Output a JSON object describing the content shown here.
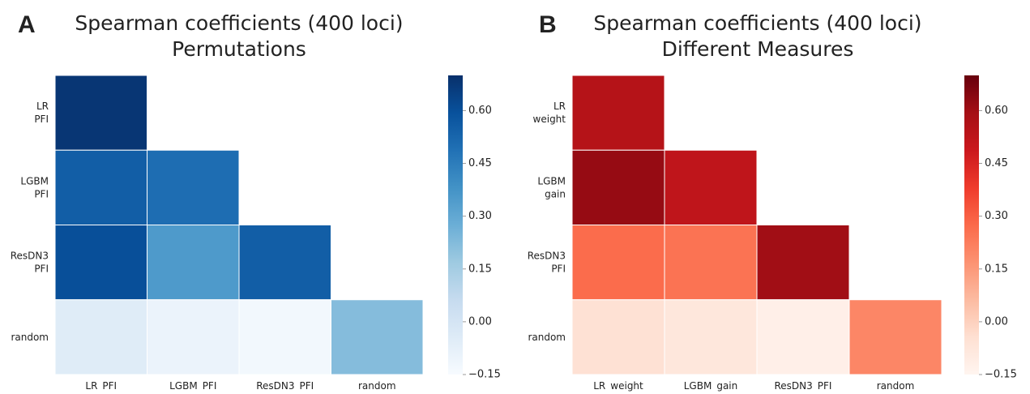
{
  "chart_data": [
    {
      "type": "heatmap",
      "panel": "A",
      "title": "Spearman coefficients (400 loci)",
      "subtitle": "Permutations",
      "categories": [
        [
          "LR",
          "PFI"
        ],
        [
          "LGBM",
          "PFI"
        ],
        [
          "ResDN3",
          "PFI"
        ],
        [
          "random"
        ]
      ],
      "values": [
        [
          0.68
        ],
        [
          0.55,
          0.5
        ],
        [
          0.6,
          0.35,
          0.55
        ],
        [
          -0.05,
          -0.1,
          -0.13,
          0.22
        ]
      ],
      "cmap": "Blues",
      "clim": [
        -0.15,
        0.7
      ],
      "cticks": [
        {
          "value": -0.15,
          "label": "−0.15"
        },
        {
          "value": 0,
          "label": "0.00"
        },
        {
          "value": 0.15,
          "label": "0.15"
        },
        {
          "value": 0.3,
          "label": "0.30"
        },
        {
          "value": 0.45,
          "label": "0.45"
        },
        {
          "value": 0.6,
          "label": "0.60"
        }
      ]
    },
    {
      "type": "heatmap",
      "panel": "B",
      "title": "Spearman coefficients (400 loci)",
      "subtitle": "Different Measures",
      "categories": [
        [
          "LR",
          "weight"
        ],
        [
          "LGBM",
          "gain"
        ],
        [
          "ResDN3",
          "PFI"
        ],
        [
          "random"
        ]
      ],
      "values": [
        [
          0.55
        ],
        [
          0.62,
          0.52
        ],
        [
          0.27,
          0.25,
          0.6
        ],
        [
          -0.05,
          -0.08,
          -0.12,
          0.2
        ]
      ],
      "cmap": "Reds",
      "clim": [
        -0.15,
        0.7
      ],
      "cticks": [
        {
          "value": -0.15,
          "label": "−0.15"
        },
        {
          "value": 0,
          "label": "0.00"
        },
        {
          "value": 0.15,
          "label": "0.15"
        },
        {
          "value": 0.3,
          "label": "0.30"
        },
        {
          "value": 0.45,
          "label": "0.45"
        },
        {
          "value": 0.6,
          "label": "0.60"
        }
      ]
    }
  ]
}
